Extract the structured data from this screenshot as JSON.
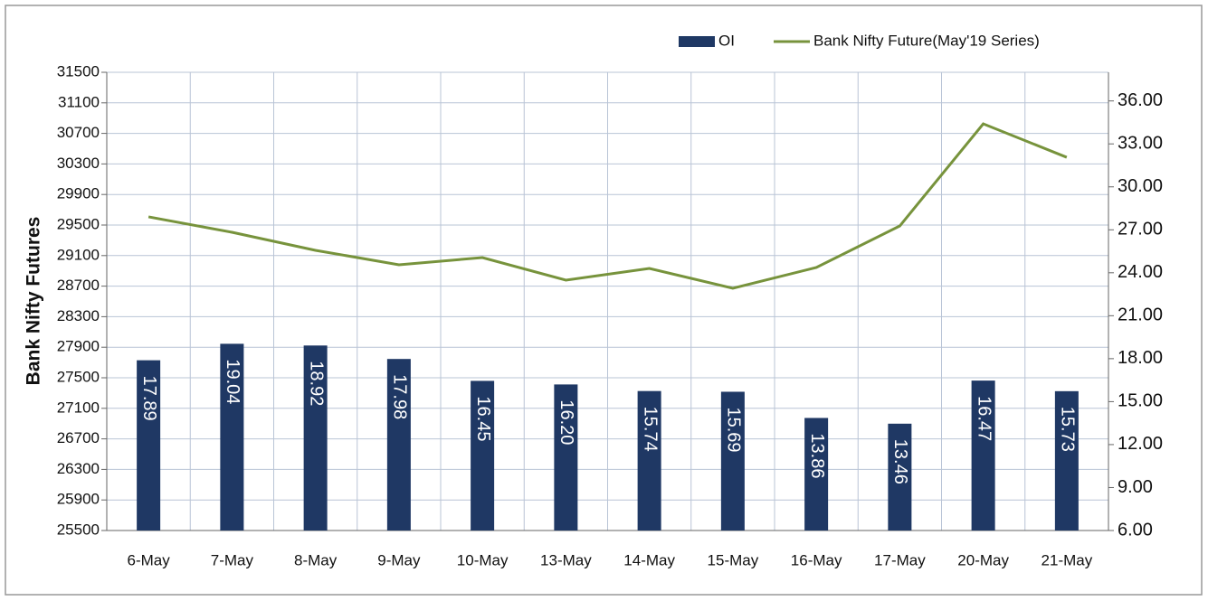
{
  "chart_data": {
    "type": "bar-line",
    "y_axis_label": "Bank Nifty Futures",
    "categories": [
      "6-May",
      "7-May",
      "8-May",
      "9-May",
      "10-May",
      "13-May",
      "14-May",
      "15-May",
      "16-May",
      "17-May",
      "20-May",
      "21-May"
    ],
    "series": [
      {
        "name": "OI",
        "type": "bar",
        "axis": "y2",
        "color": "#1f3864",
        "values": [
          17.89,
          19.04,
          18.92,
          17.98,
          16.45,
          16.2,
          15.74,
          15.69,
          13.86,
          13.46,
          16.47,
          15.73
        ],
        "value_labels": [
          "17.89",
          "19.04",
          "18.92",
          "17.98",
          "16.45",
          "16.20",
          "15.74",
          "15.69",
          "13.86",
          "13.46",
          "16.47",
          "15.73"
        ]
      },
      {
        "name": "Bank Nifty Future(May'19 Series)",
        "type": "line",
        "axis": "y",
        "color": "#77933c",
        "values": [
          29607,
          29405,
          29169,
          28980,
          29074,
          28778,
          28932,
          28672,
          28944,
          29488,
          30825,
          30387
        ]
      }
    ],
    "ylim": [
      25500,
      31500
    ],
    "yticks": [
      25500,
      25900,
      26300,
      26700,
      27100,
      27500,
      27900,
      28300,
      28700,
      29100,
      29500,
      29900,
      30300,
      30700,
      31100,
      31500
    ],
    "y2lim": [
      6,
      38
    ],
    "y2ticks": [
      {
        "value": 6,
        "label": "6.00"
      },
      {
        "value": 9,
        "label": "9.00"
      },
      {
        "value": 12,
        "label": "12.00"
      },
      {
        "value": 15,
        "label": "15.00"
      },
      {
        "value": 18,
        "label": "18.00"
      },
      {
        "value": 21,
        "label": "21.00"
      },
      {
        "value": 24,
        "label": "24.00"
      },
      {
        "value": 27,
        "label": "27.00"
      },
      {
        "value": 30,
        "label": "30.00"
      },
      {
        "value": 33,
        "label": "33.00"
      },
      {
        "value": 36,
        "label": "36.00"
      }
    ],
    "grid": true,
    "legend": "top-right"
  }
}
